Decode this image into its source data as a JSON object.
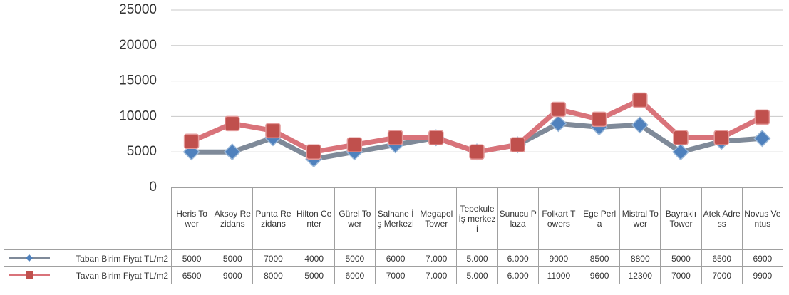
{
  "chart_data": {
    "type": "line",
    "categories": [
      "Heris Tower",
      "Aksoy Rezidans",
      "Punta Rezidans",
      "Hilton Center",
      "Gürel Tower",
      "Salhane İş Merkezi",
      "Megapol Tower",
      "Tepekule İş merkezi",
      "Sunucu Plaza",
      "Folkart Towers",
      "Ege Perla",
      "Mistral Tower",
      "Bayraklı Tower",
      "Atek Adress",
      "Novus Ventus"
    ],
    "series": [
      {
        "name": "Taban Birim Fiyat TL/m2",
        "color": "#4f81bd",
        "line_color": "#7f8a99",
        "values": [
          5000,
          5000,
          7000,
          4000,
          5000,
          6000,
          7000,
          5000,
          6000,
          9000,
          8500,
          8800,
          5000,
          6500,
          6900
        ],
        "value_labels": [
          "5000",
          "5000",
          "7000",
          "4000",
          "5000",
          "6000",
          "7.000",
          "5.000",
          "6.000",
          "9000",
          "8500",
          "8800",
          "5000",
          "6500",
          "6900"
        ]
      },
      {
        "name": "Tavan Birim Fiyat TL/m2",
        "color": "#c0504d",
        "line_color": "#d9737a",
        "values": [
          6500,
          9000,
          8000,
          5000,
          6000,
          7000,
          7000,
          5000,
          6000,
          11000,
          9600,
          12300,
          7000,
          7000,
          9900
        ],
        "value_labels": [
          "6500",
          "9000",
          "8000",
          "5000",
          "6000",
          "7000",
          "7.000",
          "5.000",
          "6.000",
          "11000",
          "9600",
          "12300",
          "7000",
          "7000",
          "9900"
        ]
      }
    ],
    "ylim": [
      0,
      25000
    ],
    "yticks": [
      0,
      5000,
      10000,
      15000,
      20000,
      25000
    ],
    "grid": true,
    "legend": "table"
  }
}
